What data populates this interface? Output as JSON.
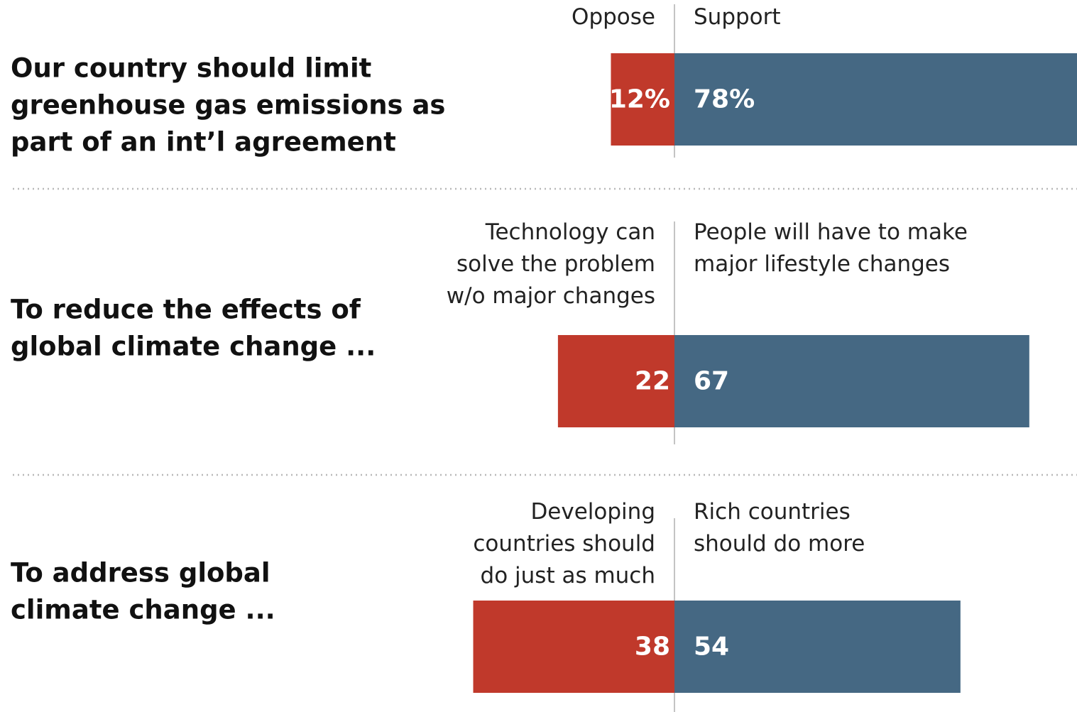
{
  "chart_data": {
    "type": "bar",
    "orientation": "horizontal-diverging",
    "colors": {
      "left": "#c0392b",
      "right": "#456883"
    },
    "rows": [
      {
        "question": [
          "Our country should limit",
          "greenhouse gas emissions as",
          "part of an int’l agreement"
        ],
        "left_header": [
          "Oppose"
        ],
        "right_header": [
          "Support"
        ],
        "left_value": 12,
        "right_value": 78,
        "left_label": "12%",
        "right_label": "78%"
      },
      {
        "question": [
          "To reduce the effects of",
          "global climate change ..."
        ],
        "left_header": [
          "Technology can",
          "solve the problem",
          "w/o major changes"
        ],
        "right_header": [
          "People will have to make",
          "major lifestyle changes"
        ],
        "left_value": 22,
        "right_value": 67,
        "left_label": "22",
        "right_label": "67"
      },
      {
        "question": [
          "To address global",
          "climate change ..."
        ],
        "left_header": [
          "Developing",
          "countries should",
          "do just as much"
        ],
        "right_header": [
          "Rich countries",
          "should do more"
        ],
        "left_value": 38,
        "right_value": 54,
        "left_label": "38",
        "right_label": "54"
      }
    ]
  }
}
